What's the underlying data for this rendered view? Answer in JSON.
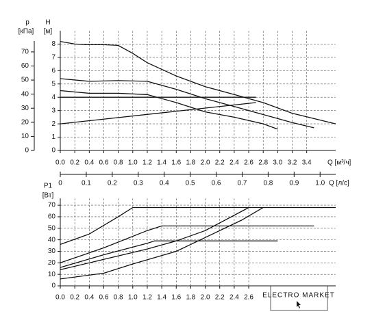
{
  "chart_data": [
    {
      "type": "line",
      "ylabel": "H",
      "yunit": "[м]",
      "y2label": "p",
      "y2unit": "[кПа]",
      "xlabel": "Q [м³/ч]",
      "x2label": "Q [л/с]",
      "xlim": [
        0,
        3.8
      ],
      "xticks": [
        {
          "value": 0,
          "label": "0.0"
        },
        0.2,
        0.4,
        0.6,
        0.8,
        {
          "value": 1,
          "label": "1.0"
        },
        1.2,
        1.4,
        1.6,
        1.8,
        {
          "value": 2,
          "label": "2.0"
        },
        2.2,
        2.4,
        2.6,
        2.8,
        {
          "value": 3,
          "label": "3.0"
        },
        3.2,
        3.4
      ],
      "ylim": [
        0,
        9
      ],
      "yticks": [
        0,
        1,
        2,
        3,
        4,
        5,
        6,
        7,
        8
      ],
      "y2lim": [
        0,
        85
      ],
      "y2ticks": [
        0,
        10,
        20,
        30,
        40,
        50,
        60,
        70
      ],
      "x2lim": [
        0,
        1.06
      ],
      "x2ticks": [
        0,
        0.1,
        0.2,
        0.3,
        0.4,
        0.5,
        0.6,
        0.7,
        0.8,
        0.9,
        {
          "value": 1,
          "label": "1.0"
        }
      ],
      "grid": true,
      "color": "#111111",
      "series": [
        {
          "x": [
            0,
            0.2,
            0.4,
            0.6,
            0.8,
            1.0,
            1.2,
            1.6,
            2.0,
            2.4,
            2.8,
            3.2,
            3.8
          ],
          "values": [
            8.2,
            8.0,
            7.95,
            7.95,
            7.9,
            7.3,
            6.6,
            5.6,
            4.8,
            4.2,
            3.6,
            2.8,
            2.0
          ]
        },
        {
          "x": [
            0,
            0.4,
            0.8,
            1.2,
            1.6,
            2.0,
            2.4,
            2.8,
            3.2,
            3.5
          ],
          "values": [
            5.4,
            5.2,
            5.25,
            5.2,
            4.6,
            3.9,
            3.3,
            2.7,
            2.1,
            1.7
          ]
        },
        {
          "x": [
            0,
            0.4,
            0.8,
            1.2,
            1.6,
            2.0,
            2.4,
            2.8,
            3.0
          ],
          "values": [
            4.5,
            4.3,
            4.3,
            4.2,
            3.6,
            2.9,
            2.5,
            2.0,
            1.6
          ]
        },
        {
          "x": [
            0,
            2.7
          ],
          "values": [
            4.0,
            4.0
          ]
        },
        {
          "x": [
            0,
            2.7
          ],
          "values": [
            2.0,
            3.6
          ]
        }
      ]
    },
    {
      "type": "line",
      "ylabel": "P1",
      "yunit": "[Вт]",
      "xlim": [
        0,
        3.8
      ],
      "xticks": [
        {
          "value": 0,
          "label": "0.0"
        },
        0.2,
        0.4,
        0.6,
        0.8,
        {
          "value": 1,
          "label": "1.0"
        },
        1.2,
        1.4,
        1.6,
        1.8,
        {
          "value": 2,
          "label": "2.0"
        },
        2.2,
        2.4,
        2.6
      ],
      "ylim": [
        0,
        76
      ],
      "yticks": [
        0,
        10,
        20,
        30,
        40,
        50,
        60,
        70
      ],
      "grid": true,
      "color": "#111111",
      "series": [
        {
          "x": [
            0,
            0.4,
            0.8,
            1.0,
            3.8
          ],
          "values": [
            36,
            45,
            60,
            68,
            68
          ]
        },
        {
          "x": [
            0,
            0.6,
            1.2,
            1.4,
            3.5
          ],
          "values": [
            20,
            33,
            48,
            52,
            52
          ]
        },
        {
          "x": [
            0,
            0.6,
            1.2,
            1.3,
            3.0
          ],
          "values": [
            16,
            27,
            37,
            39,
            39
          ]
        },
        {
          "x": [
            0,
            0.6,
            1.2,
            1.6,
            2.0,
            2.6
          ],
          "values": [
            14,
            23,
            32,
            39,
            48,
            68
          ]
        },
        {
          "x": [
            0,
            0.6,
            1.0,
            1.6,
            2.0,
            2.5,
            2.8
          ],
          "values": [
            6,
            11,
            19,
            30,
            42,
            57,
            68
          ]
        }
      ]
    }
  ],
  "logo": {
    "title": "ELECTRO MARKET"
  }
}
